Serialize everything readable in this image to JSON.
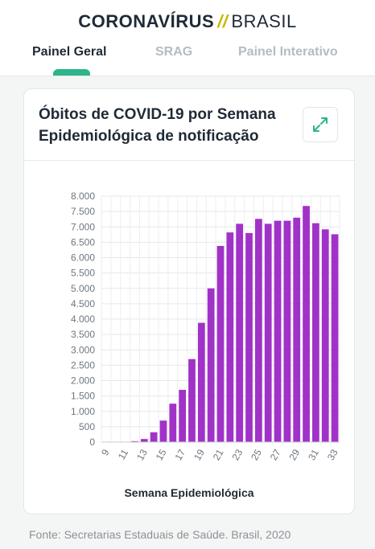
{
  "header": {
    "brand_main": "CORONAVÍRUS",
    "brand_sep": "//",
    "brand_sub": "BRASIL",
    "tabs": [
      {
        "label": "Painel Geral",
        "active": true
      },
      {
        "label": "SRAG",
        "active": false
      },
      {
        "label": "Painel Interativo",
        "active": false
      }
    ],
    "accent_color": "#2db48b"
  },
  "card": {
    "title_line1": "Óbitos de COVID-19 por Semana",
    "title_line2": "Epidemiológica de notificação",
    "expand_icon": "expand-arrows-icon"
  },
  "chart_data": {
    "type": "bar",
    "title": "Óbitos de COVID-19 por Semana Epidemiológica de notificação",
    "xlabel": "Semana Epidemiológica",
    "ylabel": "",
    "ylim": [
      0,
      8000
    ],
    "yticks": [
      0,
      500,
      1000,
      1500,
      2000,
      2500,
      3000,
      3500,
      4000,
      4500,
      5000,
      5500,
      6000,
      6500,
      7000,
      7500,
      8000
    ],
    "ytick_labels": [
      "0",
      "500",
      "1.000",
      "1.500",
      "2.000",
      "2.500",
      "3.000",
      "3.500",
      "4.000",
      "4.500",
      "5.000",
      "5.500",
      "6.000",
      "6.500",
      "7.000",
      "7.500",
      "8.000"
    ],
    "categories": [
      9,
      10,
      11,
      12,
      13,
      14,
      15,
      16,
      17,
      18,
      19,
      20,
      21,
      22,
      23,
      24,
      25,
      26,
      27,
      28,
      29,
      30,
      31,
      32,
      33
    ],
    "xtick_labels": [
      "9",
      "11",
      "13",
      "15",
      "17",
      "19",
      "21",
      "23",
      "25",
      "27",
      "29",
      "31",
      "33"
    ],
    "values": [
      0,
      2,
      8,
      30,
      100,
      320,
      700,
      1250,
      1700,
      2700,
      3880,
      5000,
      6380,
      6820,
      7100,
      6800,
      7260,
      7100,
      7200,
      7200,
      7300,
      7680,
      7120,
      6920,
      6760
    ],
    "bar_color": "#a032c8",
    "grid": true
  },
  "footer": {
    "source": "Fonte: Secretarias Estaduais de Saúde. Brasil, 2020"
  }
}
